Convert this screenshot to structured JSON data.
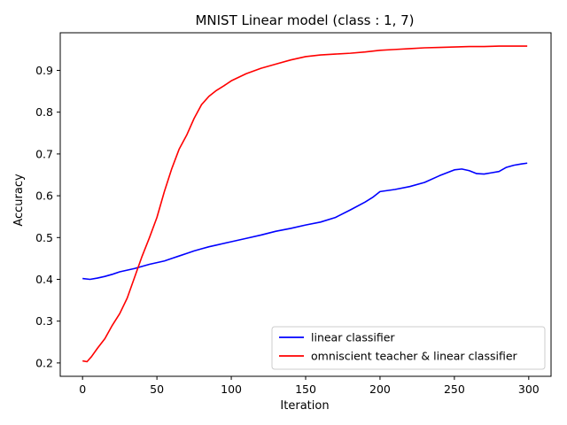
{
  "chart_data": {
    "type": "line",
    "title": "MNIST Linear model (class : 1, 7)",
    "xlabel": "Iteration",
    "ylabel": "Accuracy",
    "xlim": [
      -15,
      315
    ],
    "ylim": [
      0.168,
      0.99
    ],
    "xticks": [
      0,
      50,
      100,
      150,
      200,
      250,
      300
    ],
    "yticks": [
      0.2,
      0.3,
      0.4,
      0.5,
      0.6,
      0.7,
      0.8,
      0.9
    ],
    "grid": false,
    "legend_position": "lower-right",
    "series": [
      {
        "name": "linear classifier",
        "color": "#0000ff",
        "x": [
          0,
          5,
          10,
          15,
          20,
          25,
          30,
          35,
          40,
          45,
          50,
          55,
          60,
          65,
          70,
          75,
          80,
          85,
          90,
          95,
          100,
          110,
          120,
          130,
          140,
          150,
          160,
          170,
          180,
          190,
          195,
          200,
          210,
          220,
          230,
          240,
          245,
          250,
          255,
          260,
          265,
          270,
          275,
          280,
          285,
          290,
          295,
          299
        ],
        "y": [
          0.402,
          0.4,
          0.403,
          0.407,
          0.412,
          0.418,
          0.422,
          0.426,
          0.431,
          0.436,
          0.44,
          0.444,
          0.45,
          0.456,
          0.462,
          0.468,
          0.473,
          0.478,
          0.482,
          0.486,
          0.49,
          0.498,
          0.506,
          0.515,
          0.522,
          0.53,
          0.537,
          0.548,
          0.566,
          0.585,
          0.596,
          0.61,
          0.615,
          0.622,
          0.632,
          0.648,
          0.655,
          0.662,
          0.664,
          0.66,
          0.653,
          0.652,
          0.655,
          0.658,
          0.668,
          0.673,
          0.676,
          0.678
        ]
      },
      {
        "name": "omniscient teacher & linear classifier",
        "color": "#ff0000",
        "x": [
          0,
          3,
          6,
          10,
          15,
          20,
          25,
          30,
          35,
          40,
          45,
          50,
          55,
          60,
          65,
          70,
          75,
          80,
          85,
          90,
          95,
          100,
          110,
          120,
          130,
          140,
          150,
          160,
          170,
          180,
          190,
          200,
          210,
          220,
          230,
          240,
          250,
          260,
          270,
          280,
          290,
          299
        ],
        "y": [
          0.205,
          0.203,
          0.215,
          0.235,
          0.258,
          0.29,
          0.318,
          0.355,
          0.405,
          0.455,
          0.5,
          0.548,
          0.61,
          0.665,
          0.712,
          0.745,
          0.785,
          0.818,
          0.838,
          0.852,
          0.863,
          0.875,
          0.892,
          0.905,
          0.915,
          0.925,
          0.933,
          0.937,
          0.939,
          0.941,
          0.944,
          0.948,
          0.95,
          0.952,
          0.954,
          0.955,
          0.956,
          0.957,
          0.957,
          0.958,
          0.958,
          0.958
        ]
      }
    ]
  }
}
